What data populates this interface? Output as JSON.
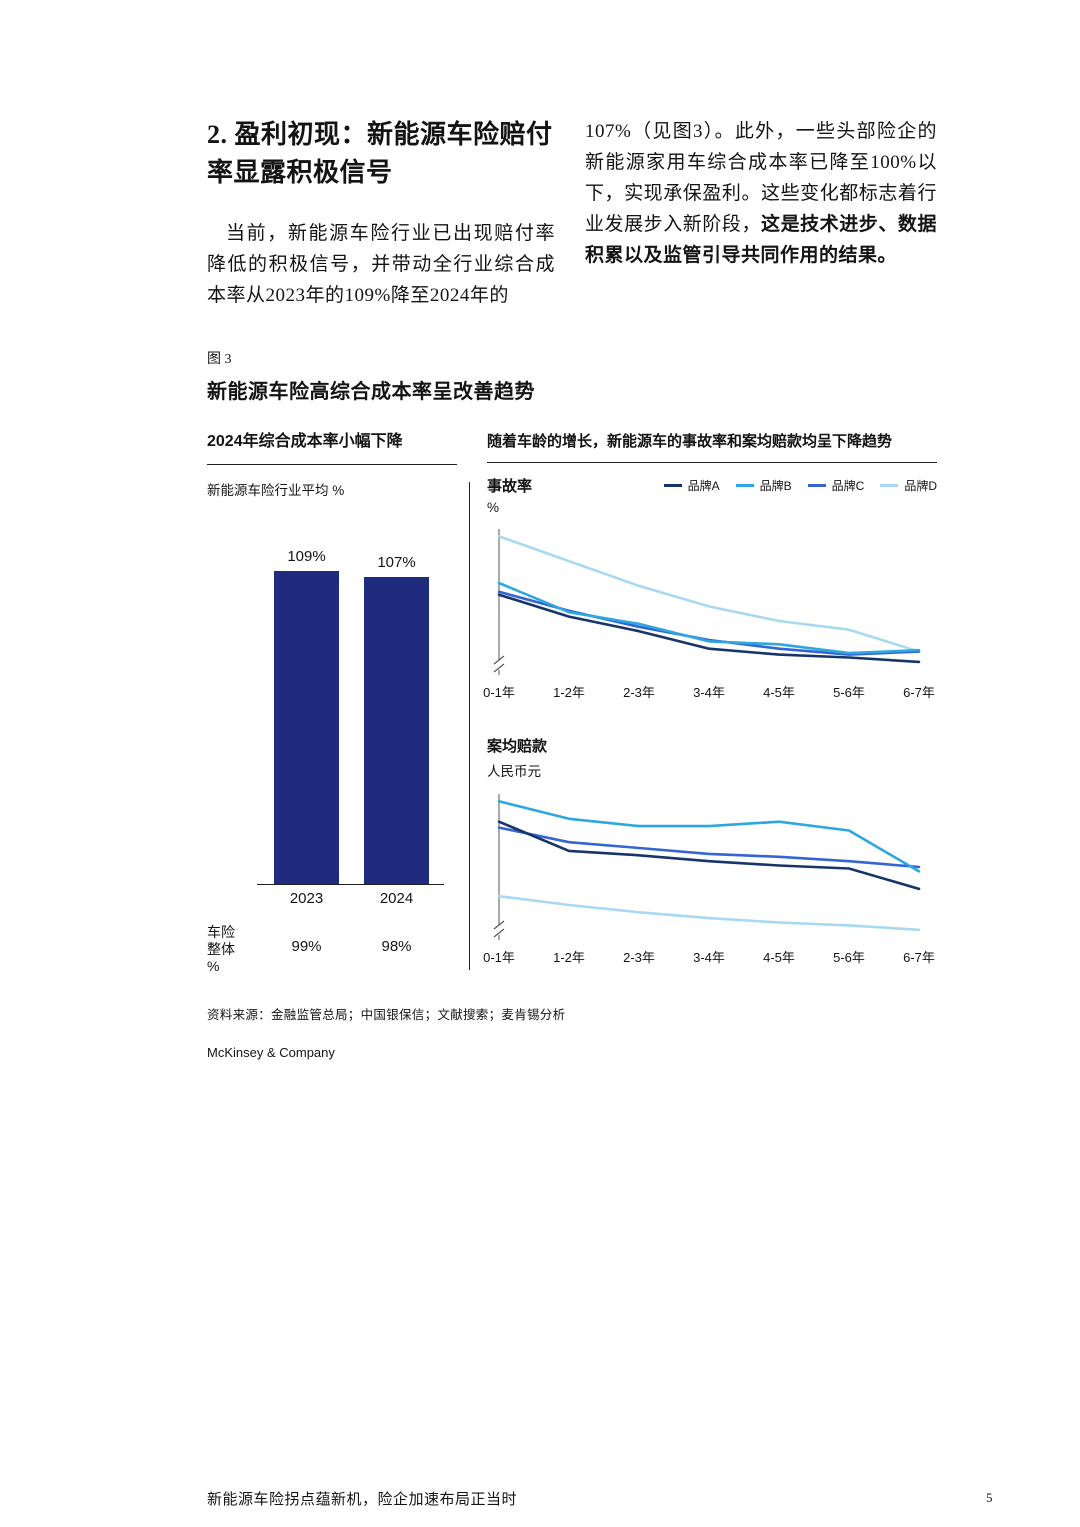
{
  "page": {
    "footer_title": "新能源车险拐点蕴新机，险企加速布局正当时",
    "number": "5"
  },
  "article": {
    "heading": "2. 盈利初现：新能源车险赔付率显露积极信号",
    "left_paragraph": "当前，新能源车险行业已出现赔付率降低的积极信号，并带动全行业综合成本率从2023年的109%降至2024年的",
    "right_paragraph": "107%（见图3）。此外，一些头部险企的新能源家用车综合成本率已降至100%以下，实现承保盈利。这些变化都标志着行业发展步入新阶段，",
    "right_paragraph_bold": "这是技术进步、数据积累以及监管引导共同作用的结果。"
  },
  "figure": {
    "label": "图 3",
    "title": "新能源车险高综合成本率呈改善趋势",
    "source": "资料来源：金融监管总局；中国银保信；文献搜索；麦肯锡分析",
    "brand": "McKinsey & Company"
  },
  "chart_data": [
    {
      "type": "bar",
      "title": "2024年综合成本率小幅下降",
      "subtitle": "新能源车险行业平均 %",
      "categories": [
        "2023",
        "2024"
      ],
      "values": [
        109,
        107
      ],
      "value_labels": [
        "109%",
        "107%"
      ],
      "bar_color": "#1f2b7d",
      "overall_row_label": "车险\n整体\n%",
      "overall_values": [
        "99%",
        "98%"
      ],
      "ylim": [
        0,
        109
      ]
    },
    {
      "type": "line",
      "title": "随着车龄的增长，新能源车的事故率和案均赔款均呈下降趋势",
      "metric": "事故率",
      "unit": "%",
      "categories": [
        "0-1年",
        "1-2年",
        "2-3年",
        "3-4年",
        "4-5年",
        "5-6年",
        "6-7年"
      ],
      "ylim": [
        0,
        100
      ],
      "legend_position": "top-right",
      "series": [
        {
          "name": "品牌A",
          "color": "#17356b",
          "values": [
            55,
            40,
            30,
            18,
            14,
            12,
            9
          ]
        },
        {
          "name": "品牌B",
          "color": "#2ea7e0",
          "values": [
            63,
            43,
            35,
            23,
            21,
            15,
            17
          ]
        },
        {
          "name": "品牌C",
          "color": "#3565d0",
          "values": [
            57,
            44,
            33,
            24,
            18,
            14,
            16
          ]
        },
        {
          "name": "品牌D",
          "color": "#a9d9f2",
          "values": [
            95,
            78,
            61,
            47,
            37,
            31,
            16
          ]
        }
      ]
    },
    {
      "type": "line",
      "metric": "案均赔款",
      "unit": "人民币元",
      "categories": [
        "0-1年",
        "1-2年",
        "2-3年",
        "3-4年",
        "4-5年",
        "5-6年",
        "6-7年"
      ],
      "ylim": [
        0,
        100
      ],
      "series": [
        {
          "name": "品牌A",
          "color": "#17356b",
          "values": [
            81,
            61,
            58,
            54,
            51,
            49,
            35
          ]
        },
        {
          "name": "品牌B",
          "color": "#2ea7e0",
          "values": [
            95,
            83,
            78,
            78,
            81,
            75,
            47
          ]
        },
        {
          "name": "品牌C",
          "color": "#3565d0",
          "values": [
            77,
            67,
            63,
            59,
            57,
            54,
            50
          ]
        },
        {
          "name": "品牌D",
          "color": "#a9d9f2",
          "values": [
            30,
            24,
            19,
            15,
            12,
            10,
            7
          ]
        }
      ]
    }
  ]
}
